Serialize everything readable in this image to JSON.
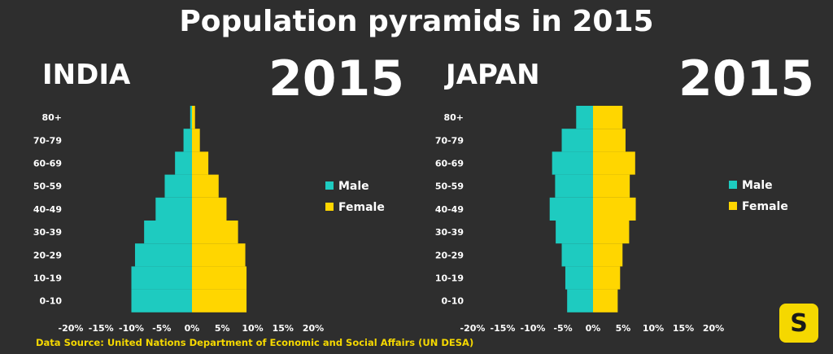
{
  "title": "Population pyramids in 2015",
  "source": "Data Source: United Nations Department of Economic and Social Affairs  (UN DESA)",
  "logo_letter": "S",
  "colors": {
    "male": "#1ecbc0",
    "female": "#ffd600",
    "background": "#2e2e2e"
  },
  "chart_data": [
    {
      "type": "bar",
      "orientation": "horizontal-pyramid",
      "country": "INDIA",
      "year": "2015",
      "categories": [
        "0-10",
        "10-19",
        "20-29",
        "30-39",
        "40-49",
        "50-59",
        "60-69",
        "70-79",
        "80+"
      ],
      "series": [
        {
          "name": "Male",
          "values": [
            -10.0,
            -10.0,
            -9.4,
            -7.9,
            -6.0,
            -4.5,
            -2.8,
            -1.4,
            -0.3
          ]
        },
        {
          "name": "Female",
          "values": [
            9.0,
            9.0,
            8.8,
            7.6,
            5.7,
            4.4,
            2.7,
            1.3,
            0.5
          ]
        }
      ],
      "x_ticks": [
        "-20%",
        "-15%",
        "-10%",
        "-5%",
        "0%",
        "5%",
        "10%",
        "15%",
        "20%"
      ],
      "xlim": [
        -20,
        20
      ],
      "legend": [
        "Male",
        "Female"
      ],
      "legend_placement": "right",
      "grid": false
    },
    {
      "type": "bar",
      "orientation": "horizontal-pyramid",
      "country": "JAPAN",
      "year": "2015",
      "categories": [
        "0-10",
        "10-19",
        "20-29",
        "30-39",
        "40-49",
        "50-59",
        "60-69",
        "70-79",
        "80+"
      ],
      "series": [
        {
          "name": "Male",
          "values": [
            -4.3,
            -4.6,
            -5.2,
            -6.2,
            -7.2,
            -6.3,
            -6.8,
            -5.2,
            -2.8
          ]
        },
        {
          "name": "Female",
          "values": [
            4.1,
            4.5,
            4.9,
            6.0,
            7.1,
            6.1,
            7.0,
            5.4,
            4.9
          ]
        }
      ],
      "x_ticks": [
        "-20%",
        "-15%",
        "-10%",
        "-5%",
        "0%",
        "5%",
        "10%",
        "15%",
        "20%"
      ],
      "xlim": [
        -20,
        20
      ],
      "legend": [
        "Male",
        "Female"
      ],
      "legend_placement": "right",
      "grid": false
    }
  ]
}
